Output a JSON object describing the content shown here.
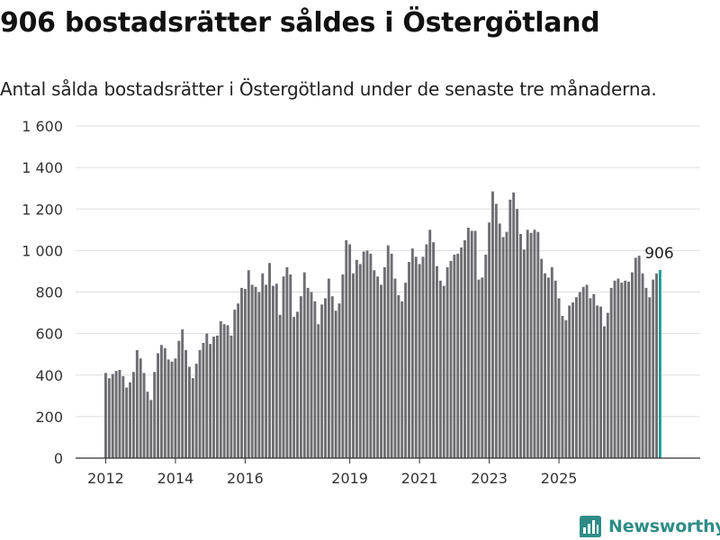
{
  "header": {
    "title": "906 bostadsrätter såldes i Östergötland",
    "subtitle": "Antal sålda bostadsrätter i Östergötland under de senaste tre månaderna."
  },
  "brand": {
    "name": "Newsworthy",
    "icon": "newsworthy-logo-icon",
    "color": "#2e8c87"
  },
  "colors": {
    "bar": "#6e6d72",
    "highlight": "#1a9c95",
    "grid": "#dddddd",
    "axis": "#333333"
  },
  "chart_data": {
    "type": "bar",
    "ylim": [
      0,
      1600
    ],
    "yticks": [
      0,
      200,
      400,
      600,
      800,
      1000,
      1200,
      1400,
      1600
    ],
    "ytick_labels": [
      "0",
      "200",
      "400",
      "600",
      "800",
      "1 000",
      "1 200",
      "1 400",
      "1 600"
    ],
    "xticks": [
      {
        "label": "2012",
        "index": 0
      },
      {
        "label": "2014",
        "index": 20
      },
      {
        "label": "2016",
        "index": 40
      },
      {
        "label": "2019",
        "index": 70
      },
      {
        "label": "2021",
        "index": 90
      },
      {
        "label": "2023",
        "index": 110
      },
      {
        "label": "2025",
        "index": 130
      }
    ],
    "grid": true,
    "highlight_last": true,
    "last_label": "906",
    "values": [
      410,
      385,
      405,
      420,
      425,
      395,
      340,
      365,
      415,
      520,
      480,
      410,
      320,
      280,
      415,
      505,
      545,
      530,
      475,
      465,
      480,
      565,
      620,
      520,
      440,
      385,
      455,
      520,
      555,
      600,
      550,
      585,
      590,
      660,
      645,
      640,
      590,
      715,
      745,
      820,
      815,
      905,
      835,
      825,
      800,
      890,
      835,
      940,
      830,
      840,
      690,
      875,
      920,
      885,
      680,
      705,
      780,
      895,
      820,
      800,
      755,
      645,
      740,
      770,
      865,
      780,
      710,
      745,
      885,
      1050,
      1030,
      890,
      955,
      935,
      995,
      1000,
      985,
      905,
      875,
      835,
      920,
      1025,
      985,
      865,
      785,
      755,
      845,
      945,
      1010,
      970,
      935,
      970,
      1030,
      1100,
      1040,
      925,
      855,
      830,
      920,
      950,
      980,
      985,
      1015,
      1050,
      1110,
      1095,
      1095,
      860,
      870,
      980,
      1135,
      1285,
      1225,
      1130,
      1065,
      1090,
      1245,
      1280,
      1200,
      1080,
      1005,
      1100,
      1085,
      1100,
      1090,
      960,
      890,
      870,
      920,
      855,
      770,
      685,
      665,
      735,
      750,
      775,
      800,
      825,
      835,
      770,
      790,
      735,
      730,
      635,
      700,
      820,
      855,
      865,
      845,
      855,
      850,
      895,
      965,
      975,
      890,
      820,
      775,
      860,
      890,
      906
    ]
  }
}
